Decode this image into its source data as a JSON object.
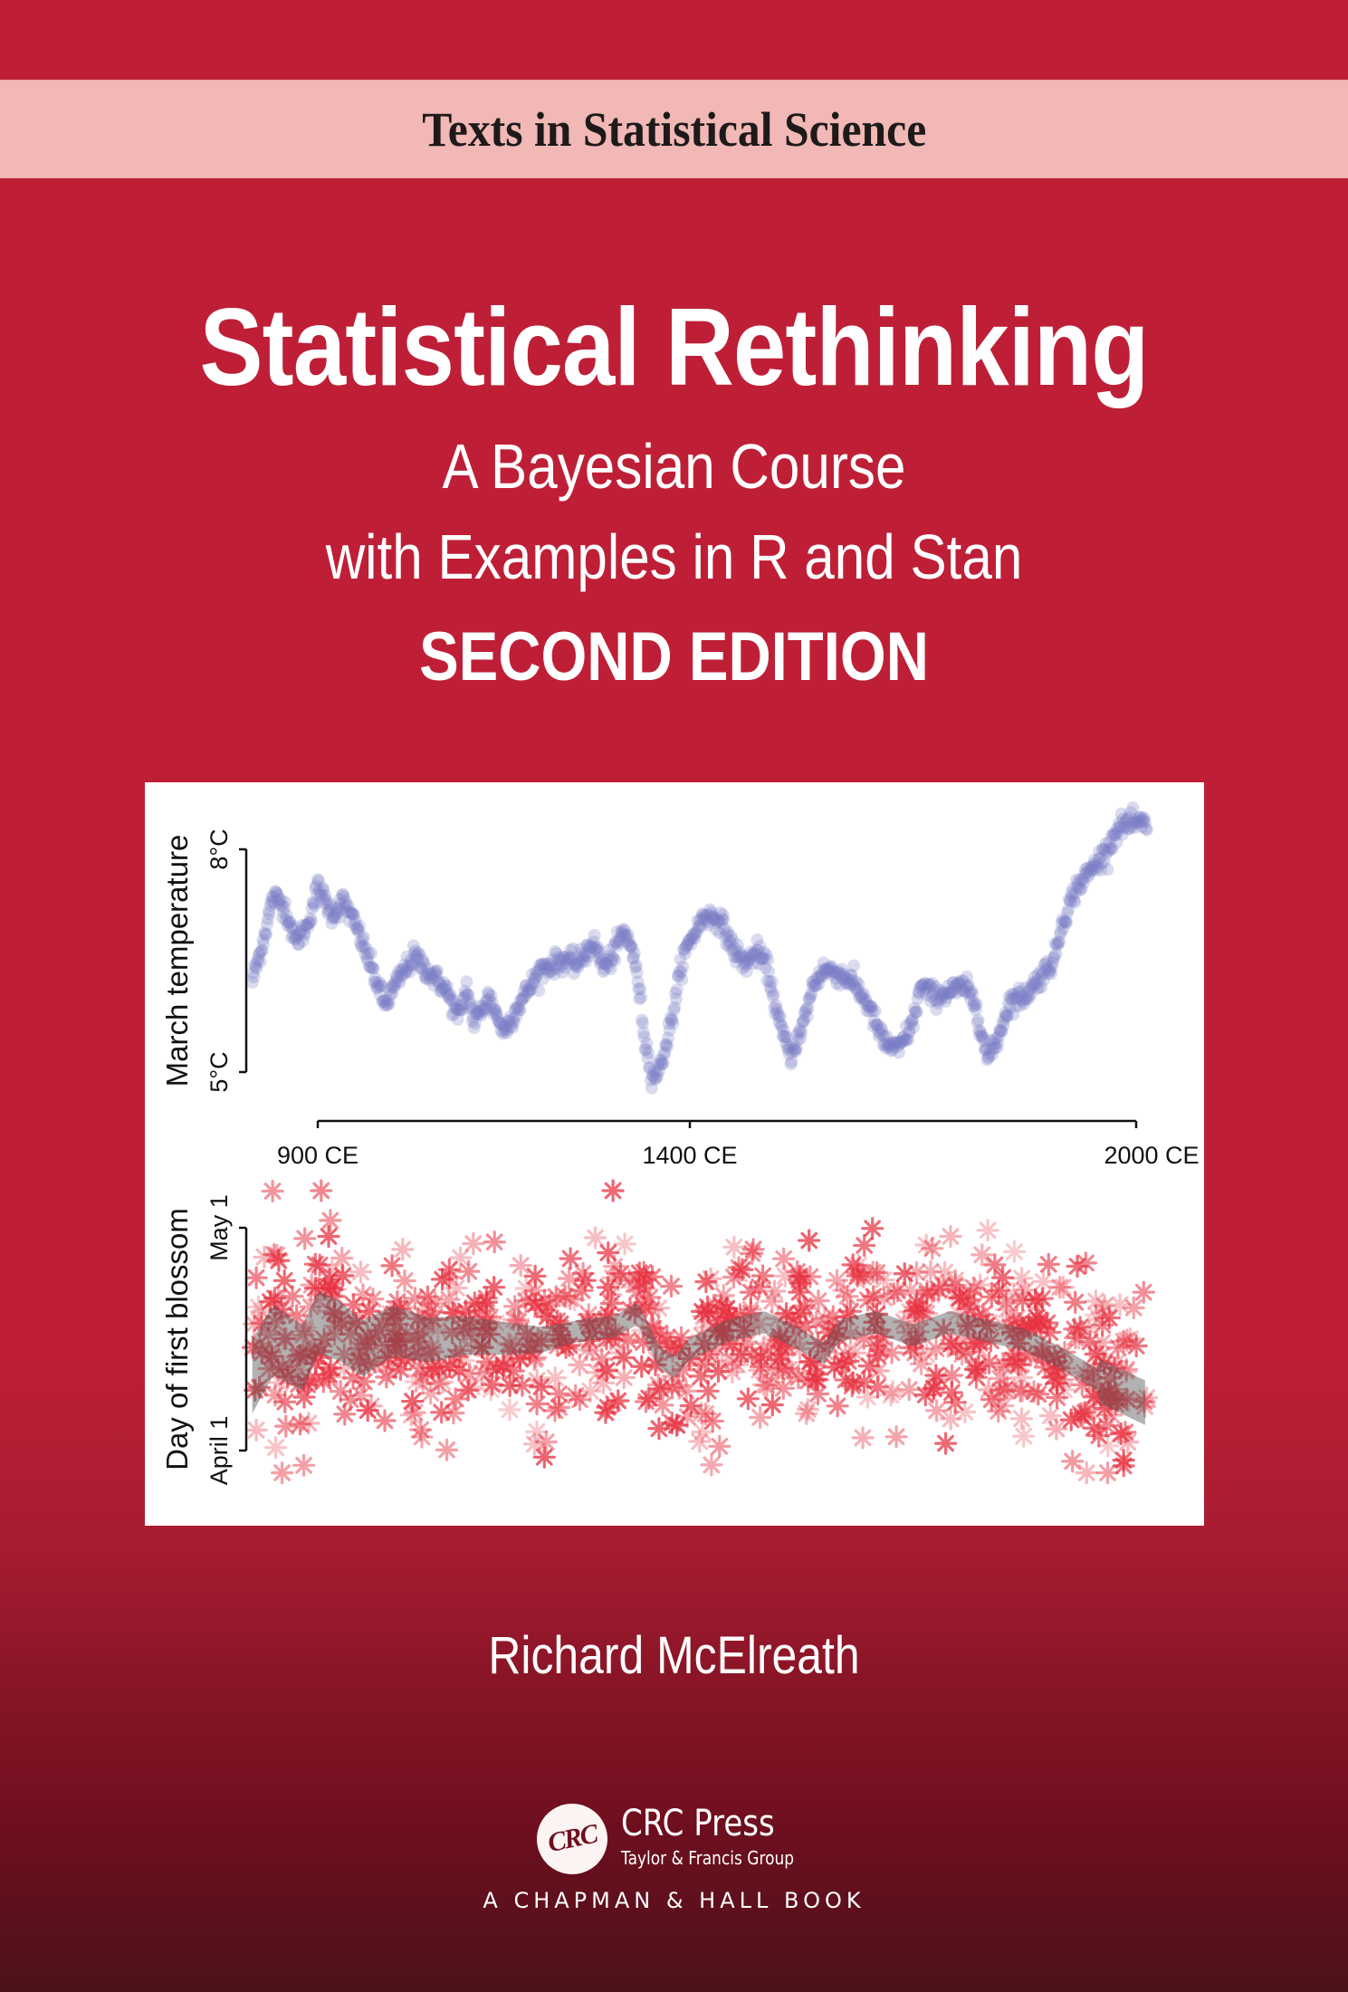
{
  "series": {
    "name": "Texts in Statistical Science"
  },
  "book": {
    "title": "Statistical Rethinking",
    "subtitle_line1": "A Bayesian Course",
    "subtitle_line2": "with Examples in R and Stan",
    "edition": "SECOND EDITION",
    "author": "Richard McElreath"
  },
  "publisher": {
    "logo_text": "CRC",
    "name": "CRC Press",
    "group": "Taylor & Francis Group",
    "imprint": "A CHAPMAN & HALL BOOK"
  },
  "colors": {
    "background_top": "#BE1F37",
    "background_bottom": "#4C1219",
    "series_band": "#F1B8B6",
    "temperature_points": "#7B7FC4",
    "blossom_points": "#E8303F",
    "blossom_band": "#555555"
  },
  "chart_data": [
    {
      "type": "scatter",
      "title": "",
      "xlabel": "",
      "ylabel": "March temperature",
      "x_ticks": [
        "900 CE",
        "1400 CE",
        "2000 CE"
      ],
      "x_tick_values": [
        900,
        1400,
        2000
      ],
      "y_ticks": [
        "5°C",
        "8°C"
      ],
      "y_tick_values": [
        5,
        8
      ],
      "xlim": [
        812,
        2015
      ],
      "ylim": [
        4.9,
        8.4
      ],
      "grid": false,
      "legend": null,
      "marker": "filled circle, semi-transparent",
      "x": [
        812,
        825,
        840,
        855,
        870,
        885,
        900,
        920,
        935,
        955,
        975,
        990,
        1010,
        1030,
        1050,
        1070,
        1090,
        1100,
        1110,
        1130,
        1150,
        1170,
        1200,
        1230,
        1250,
        1270,
        1285,
        1300,
        1310,
        1320,
        1330,
        1340,
        1350,
        1360,
        1375,
        1390,
        1400,
        1420,
        1440,
        1460,
        1475,
        1490,
        1505,
        1520,
        1535,
        1550,
        1565,
        1580,
        1600,
        1620,
        1640,
        1660,
        1680,
        1700,
        1710,
        1730,
        1750,
        1770,
        1785,
        1800,
        1815,
        1830,
        1850,
        1870,
        1890,
        1900,
        1920,
        1940,
        1960,
        1975,
        1985
      ],
      "y": [
        6.23,
        6.7,
        7.37,
        7.24,
        6.76,
        6.94,
        7.49,
        7.12,
        7.3,
        6.88,
        6.33,
        5.9,
        6.27,
        6.57,
        6.33,
        6.15,
        5.72,
        6.15,
        5.66,
        6.02,
        5.54,
        5.9,
        6.39,
        6.51,
        6.45,
        6.76,
        6.39,
        6.63,
        6.88,
        6.76,
        6.27,
        5.41,
        4.93,
        5.05,
        5.66,
        6.51,
        6.76,
        7.12,
        7.06,
        6.63,
        6.45,
        6.63,
        6.39,
        5.66,
        5.23,
        5.54,
        6.15,
        6.39,
        6.33,
        6.21,
        5.9,
        5.41,
        5.29,
        5.66,
        6.15,
        6.02,
        6.09,
        6.15,
        5.9,
        5.17,
        5.48,
        5.96,
        6.02,
        6.27,
        6.51,
        7.0,
        7.49,
        7.73,
        7.98,
        8.28,
        8.34
      ]
    },
    {
      "type": "scatter",
      "title": "",
      "xlabel": "",
      "ylabel": "Day of first blossom",
      "y_ticks": [
        "April 1",
        "May 1"
      ],
      "y_tick_values": [
        0,
        30
      ],
      "y_units": "days after April 1",
      "xlim": [
        812,
        2015
      ],
      "ylim": [
        -4,
        36
      ],
      "grid": false,
      "legend": null,
      "marker": "asterisk, semi-transparent red",
      "trend_band": {
        "description": "gray shaded credible band of smoothed mean",
        "x": [
          812,
          840,
          880,
          900,
          930,
          960,
          1000,
          1050,
          1100,
          1150,
          1200,
          1250,
          1300,
          1330,
          1360,
          1380,
          1400,
          1450,
          1500,
          1550,
          1580,
          1600,
          1650,
          1700,
          1750,
          1800,
          1850,
          1900,
          1950,
          2015
        ],
        "mean": [
          10,
          14.9,
          12.4,
          17.3,
          16.1,
          13.7,
          16.1,
          14.9,
          15.5,
          15.1,
          14.9,
          16.1,
          16.7,
          18.5,
          12.4,
          11.2,
          13.7,
          16.1,
          17.3,
          14.9,
          13.0,
          16.1,
          17.3,
          15.5,
          17.3,
          16.1,
          14.9,
          12.4,
          9.4,
          6.3
        ],
        "half_width_early": 5,
        "half_width_late": 1.5
      },
      "points_summary": {
        "approx_count": 820,
        "spread_sd_days": 6.2,
        "min_day": -3,
        "max_day": 35
      }
    }
  ]
}
